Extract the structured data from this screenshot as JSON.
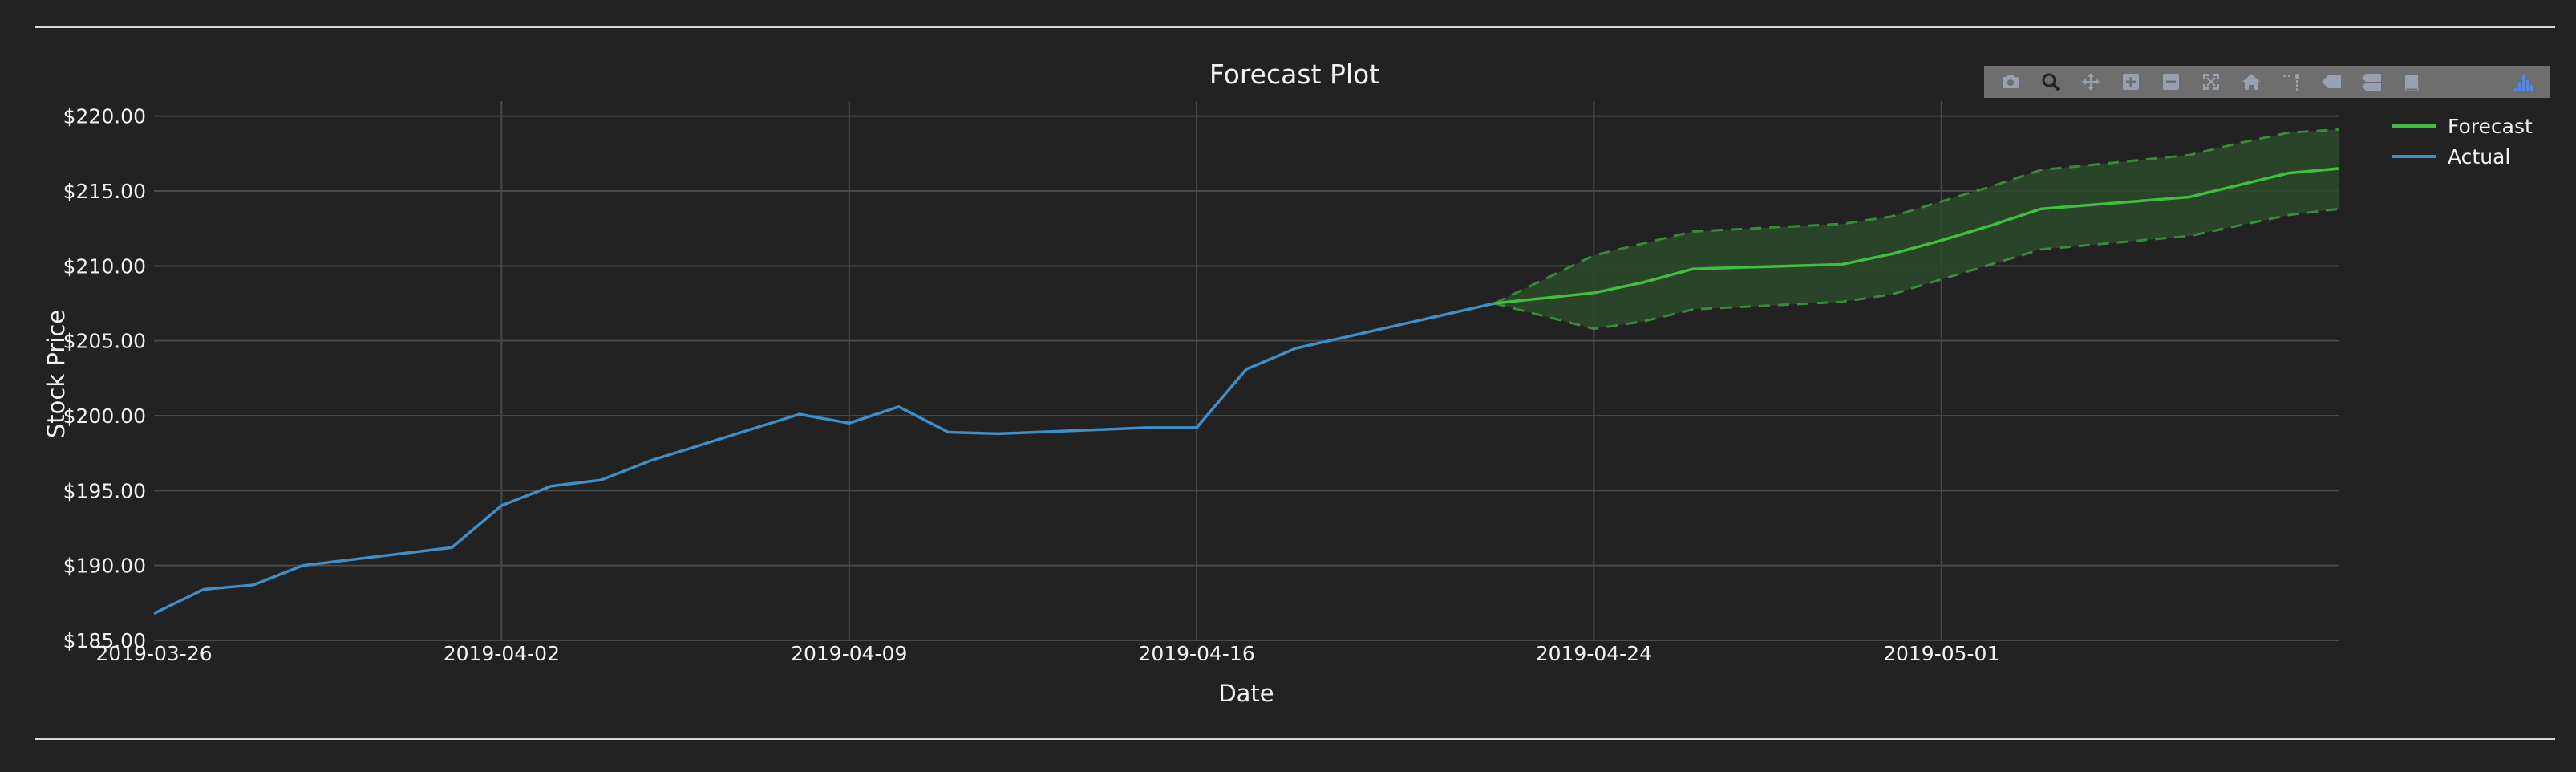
{
  "colors": {
    "background": "#222222",
    "grid": "#4a4a4a",
    "text": "#f2f2f2",
    "actual": "#3d8ec9",
    "forecast": "#3fbf3f",
    "band_fill": "#2a4a2a",
    "band_edge": "#3a8a3a",
    "modebar_bg": "#737373",
    "modebar_icon": "#9fa8b8",
    "modebar_logo": "#5b8ee6"
  },
  "modebar": {
    "buttons": [
      {
        "name": "camera-icon"
      },
      {
        "name": "zoom-icon"
      },
      {
        "name": "pan-icon"
      },
      {
        "name": "zoom-in-icon"
      },
      {
        "name": "zoom-out-icon"
      },
      {
        "name": "autoscale-icon"
      },
      {
        "name": "home-icon"
      },
      {
        "name": "spike-lines-icon"
      },
      {
        "name": "hover-closest-icon"
      },
      {
        "name": "hover-compare-icon"
      },
      {
        "name": "book-icon"
      },
      {
        "name": "plotly-logo-icon"
      }
    ]
  },
  "chart_data": {
    "type": "line",
    "title": "Forecast Plot",
    "xlabel": "Date",
    "ylabel": "Stock Price",
    "xlim": [
      "2019-03-26",
      "2019-05-09"
    ],
    "ylim": [
      185,
      221
    ],
    "xticks": [
      "2019-03-26",
      "2019-04-02",
      "2019-04-09",
      "2019-04-16",
      "2019-04-24",
      "2019-05-01"
    ],
    "yticks": [
      "$185.00",
      "$190.00",
      "$195.00",
      "$200.00",
      "$205.00",
      "$210.00",
      "$215.00",
      "$220.00"
    ],
    "grid": true,
    "legend_position": "top-right",
    "series": [
      {
        "name": "Forecast",
        "color": "#3fbf3f",
        "x": [
          "2019-04-22",
          "2019-04-24",
          "2019-04-25",
          "2019-04-26",
          "2019-04-29",
          "2019-04-30",
          "2019-05-01",
          "2019-05-02",
          "2019-05-03",
          "2019-05-06",
          "2019-05-07",
          "2019-05-08",
          "2019-05-09"
        ],
        "y": [
          207.5,
          208.2,
          208.9,
          209.8,
          210.1,
          210.8,
          211.7,
          212.7,
          213.8,
          214.6,
          215.4,
          216.2,
          216.5
        ],
        "lower": [
          207.5,
          205.8,
          206.3,
          207.1,
          207.6,
          208.1,
          209.1,
          210.1,
          211.1,
          212.0,
          212.7,
          213.4,
          213.8
        ],
        "upper": [
          207.5,
          210.7,
          211.5,
          212.3,
          212.8,
          213.3,
          214.3,
          215.3,
          216.4,
          217.4,
          218.2,
          218.9,
          219.1
        ]
      },
      {
        "name": "Actual",
        "color": "#3d8ec9",
        "x": [
          "2019-03-26",
          "2019-03-27",
          "2019-03-28",
          "2019-03-29",
          "2019-04-01",
          "2019-04-02",
          "2019-04-03",
          "2019-04-04",
          "2019-04-05",
          "2019-04-08",
          "2019-04-09",
          "2019-04-10",
          "2019-04-11",
          "2019-04-12",
          "2019-04-15",
          "2019-04-16",
          "2019-04-17",
          "2019-04-18",
          "2019-04-22"
        ],
        "y": [
          186.8,
          188.4,
          188.7,
          190.0,
          191.2,
          194.0,
          195.3,
          195.7,
          197.0,
          200.1,
          199.5,
          200.6,
          198.9,
          198.8,
          199.2,
          199.2,
          203.1,
          204.5,
          207.5
        ]
      }
    ]
  }
}
